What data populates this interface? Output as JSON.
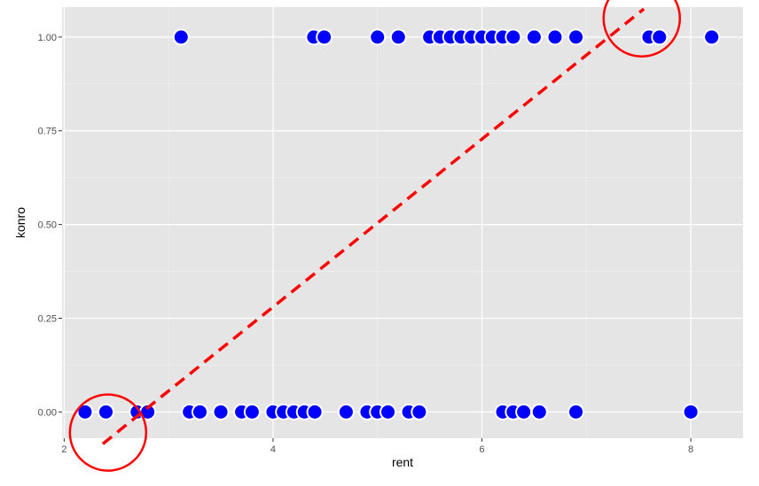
{
  "chart_data": {
    "type": "scatter",
    "xlabel": "rent",
    "ylabel": "konro",
    "xlim": [
      1.98,
      8.5
    ],
    "ylim": [
      -0.07,
      1.08
    ],
    "x_ticks": [
      2,
      4,
      6,
      8
    ],
    "x_tick_labels": [
      "2",
      "4",
      "6",
      "8"
    ],
    "y_ticks": [
      0,
      0.25,
      0.5,
      0.75,
      1.0
    ],
    "y_tick_labels": [
      "0.00",
      "0.25",
      "0.50",
      "0.75",
      "1.00"
    ],
    "grid": true,
    "panel_background": "#e5e5e5",
    "point_color": "#0000ff",
    "point_outline": "#ffffff",
    "trend_line": {
      "x": [
        2.37,
        7.55
      ],
      "y": [
        -0.085,
        1.075
      ],
      "color": "#ff0000",
      "style": "dashed"
    },
    "circle_annotations": [
      {
        "x": 2.42,
        "y": -0.055,
        "color": "#ff0000"
      },
      {
        "x": 7.53,
        "y": 1.05,
        "color": "#ff0000"
      }
    ],
    "points": [
      {
        "x": 3.12,
        "y": 1
      },
      {
        "x": 4.39,
        "y": 1
      },
      {
        "x": 4.49,
        "y": 1
      },
      {
        "x": 5.0,
        "y": 1
      },
      {
        "x": 5.2,
        "y": 1
      },
      {
        "x": 5.5,
        "y": 1
      },
      {
        "x": 5.6,
        "y": 1
      },
      {
        "x": 5.7,
        "y": 1
      },
      {
        "x": 5.8,
        "y": 1
      },
      {
        "x": 5.9,
        "y": 1
      },
      {
        "x": 6.0,
        "y": 1
      },
      {
        "x": 6.1,
        "y": 1
      },
      {
        "x": 6.2,
        "y": 1
      },
      {
        "x": 6.3,
        "y": 1
      },
      {
        "x": 6.5,
        "y": 1
      },
      {
        "x": 6.7,
        "y": 1
      },
      {
        "x": 6.9,
        "y": 1
      },
      {
        "x": 7.6,
        "y": 1
      },
      {
        "x": 7.7,
        "y": 1
      },
      {
        "x": 8.2,
        "y": 1
      },
      {
        "x": 2.2,
        "y": 0
      },
      {
        "x": 2.4,
        "y": 0
      },
      {
        "x": 2.7,
        "y": 0
      },
      {
        "x": 2.8,
        "y": 0
      },
      {
        "x": 3.2,
        "y": 0
      },
      {
        "x": 3.3,
        "y": 0
      },
      {
        "x": 3.5,
        "y": 0
      },
      {
        "x": 3.7,
        "y": 0
      },
      {
        "x": 3.8,
        "y": 0
      },
      {
        "x": 4.0,
        "y": 0
      },
      {
        "x": 4.1,
        "y": 0
      },
      {
        "x": 4.2,
        "y": 0
      },
      {
        "x": 4.3,
        "y": 0
      },
      {
        "x": 4.4,
        "y": 0
      },
      {
        "x": 4.7,
        "y": 0
      },
      {
        "x": 4.9,
        "y": 0
      },
      {
        "x": 5.0,
        "y": 0
      },
      {
        "x": 5.1,
        "y": 0
      },
      {
        "x": 5.3,
        "y": 0
      },
      {
        "x": 5.4,
        "y": 0
      },
      {
        "x": 6.2,
        "y": 0
      },
      {
        "x": 6.3,
        "y": 0
      },
      {
        "x": 6.4,
        "y": 0
      },
      {
        "x": 6.55,
        "y": 0
      },
      {
        "x": 6.9,
        "y": 0
      },
      {
        "x": 8.0,
        "y": 0
      }
    ]
  }
}
